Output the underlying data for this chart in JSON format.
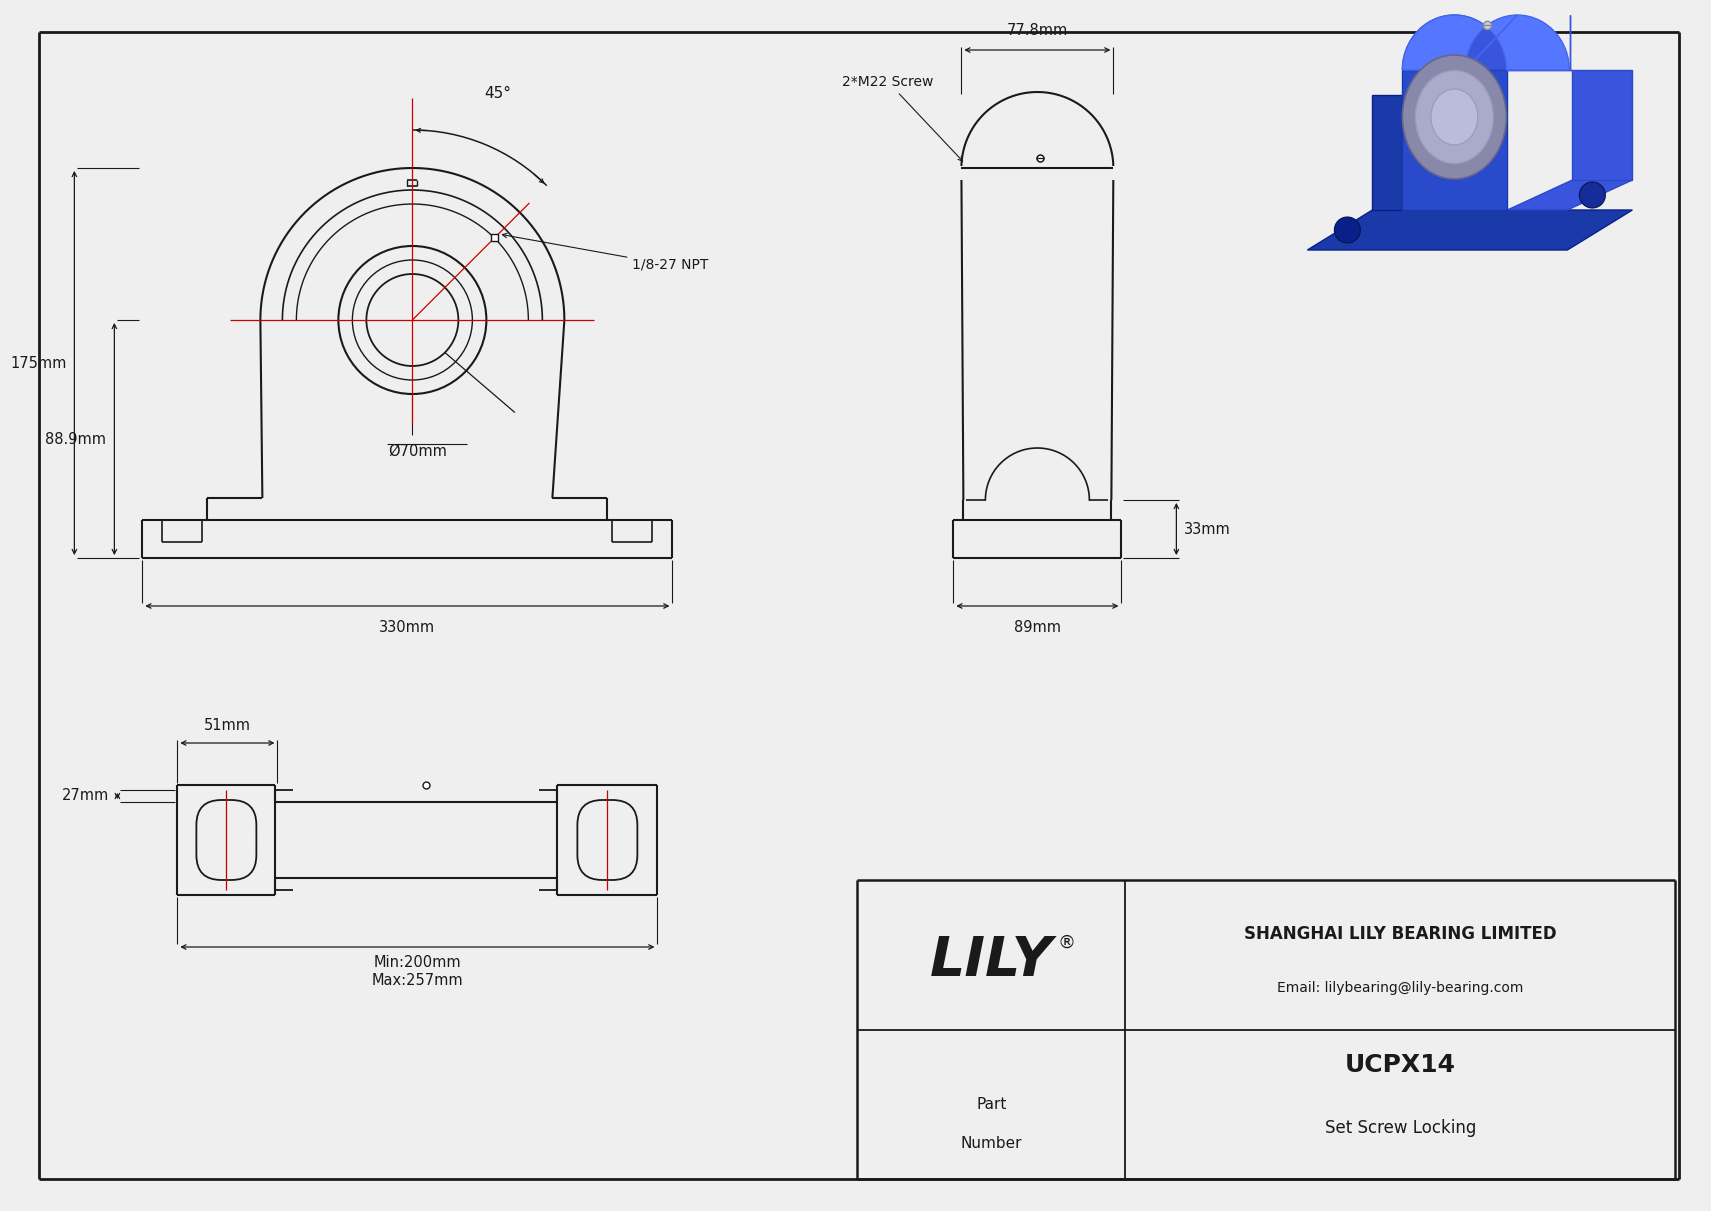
{
  "bg_color": "#efefef",
  "line_color": "#1a1a1a",
  "red_color": "#cc0000",
  "title": "UCPX14",
  "subtitle": "Set Screw Locking",
  "company": "LILY",
  "registered": "®",
  "company_full": "SHANGHAI LILY BEARING LIMITED",
  "email": "Email: lilybearing@lily-bearing.com",
  "part_label_1": "Part",
  "part_label_2": "Number",
  "dim_175": "175mm",
  "dim_889": "88.9mm",
  "dim_70": "Ø70mm",
  "dim_330": "330mm",
  "dim_45": "45°",
  "dim_npt": "1/8-27 NPT",
  "dim_screw": "2*M22 Screw",
  "dim_778": "77.8mm",
  "dim_33": "33mm",
  "dim_89": "89mm",
  "dim_51": "51mm",
  "dim_27": "27mm",
  "dim_min": "Min:200mm",
  "dim_max": "Max:257mm",
  "iso_colors": {
    "base_top": "#1a3aaa",
    "body_left": "#2244cc",
    "body_right": "#3a5add",
    "dome": "#4466ee",
    "top_face": "#5577ee",
    "bearing_outer": "#9999bb",
    "bearing_inner": "#bbbbdd",
    "hole_dark": "#0d2288"
  }
}
